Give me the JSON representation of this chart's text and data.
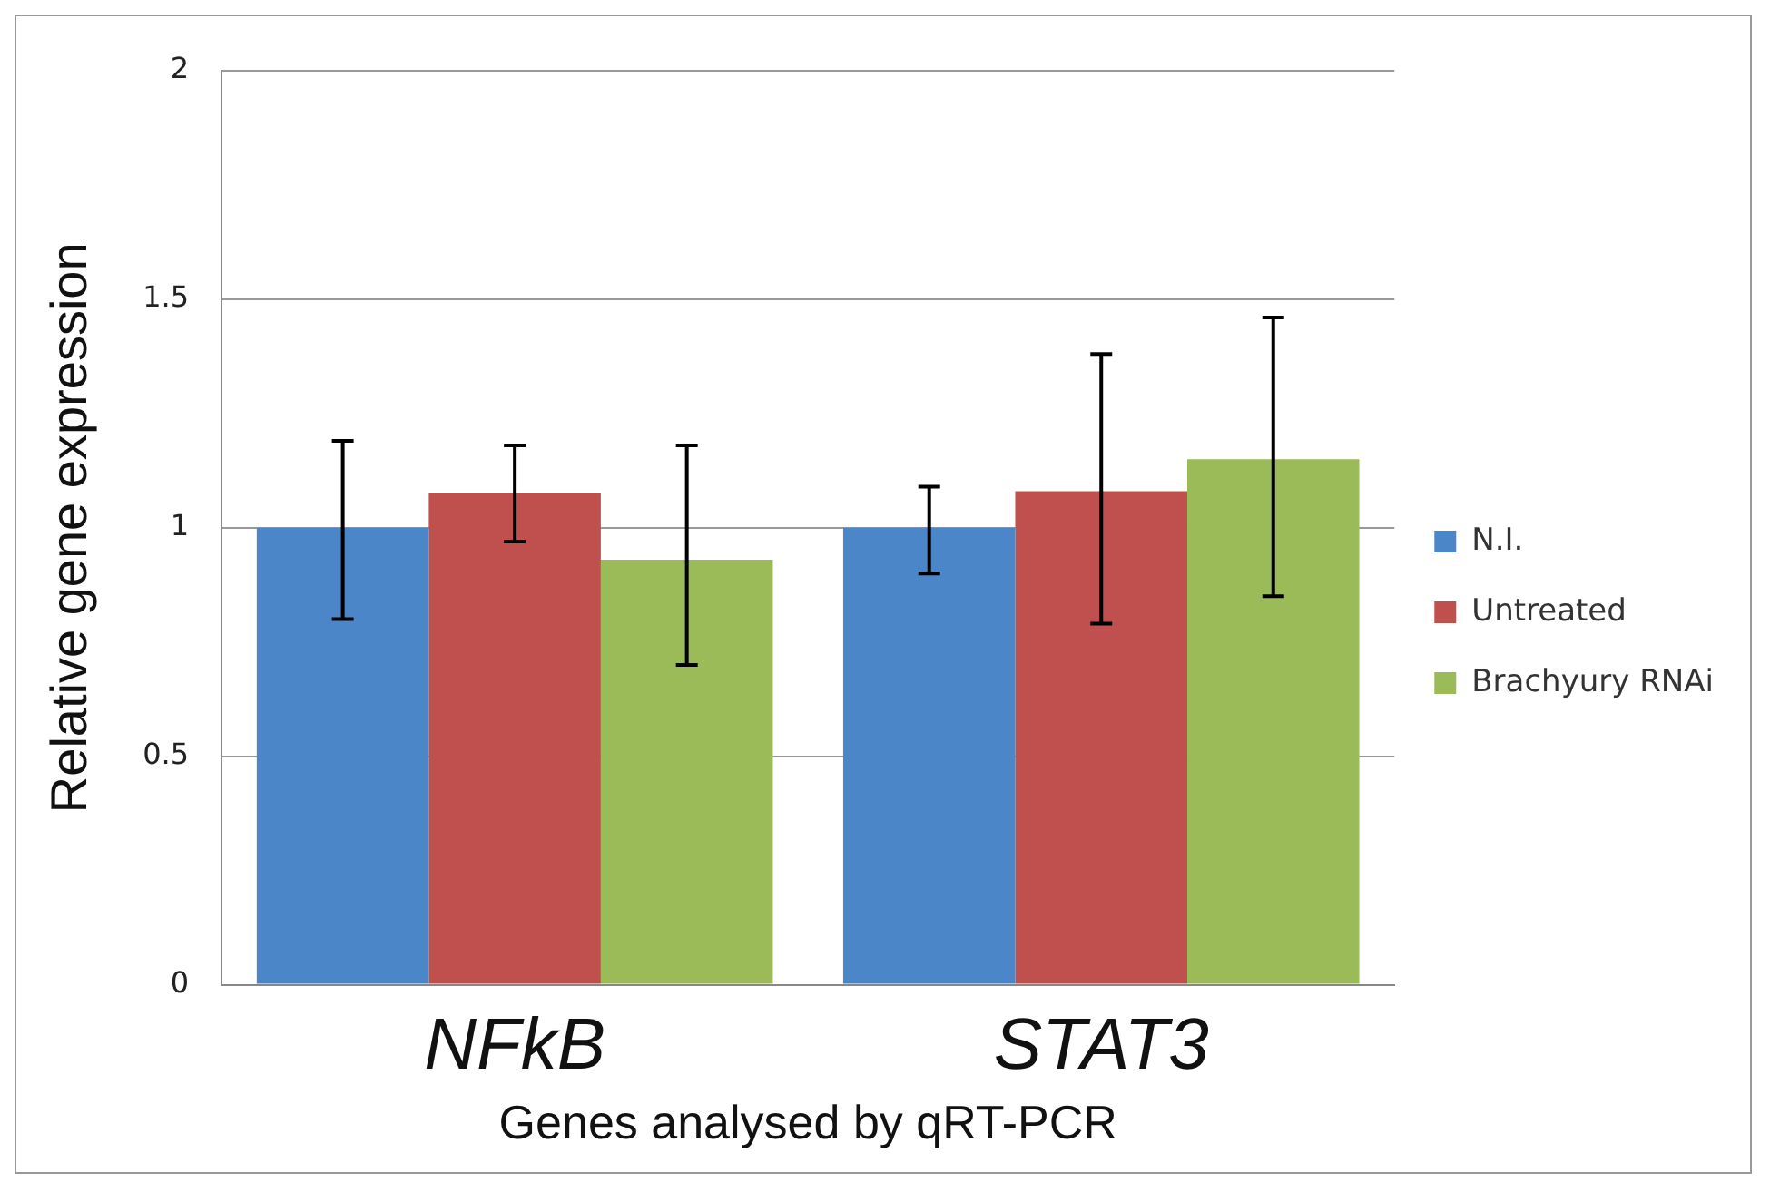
{
  "chart_data": {
    "type": "bar",
    "xlabel": "Genes analysed by qRT-PCR",
    "ylabel": "Relative gene expression",
    "categories": [
      "NFkB",
      "STAT3"
    ],
    "series": [
      {
        "name": "N.I.",
        "color": "#4a86c8",
        "values": [
          1.0,
          1.0
        ],
        "errors": [
          [
            0.8,
            1.19
          ],
          [
            0.9,
            1.09
          ]
        ]
      },
      {
        "name": "Untreated",
        "color": "#c0504d",
        "values": [
          1.075,
          1.08
        ],
        "errors": [
          [
            0.97,
            1.18
          ],
          [
            0.79,
            1.38
          ]
        ]
      },
      {
        "name": "Brachyury RNAi",
        "color": "#9bbb59",
        "values": [
          0.93,
          1.15
        ],
        "errors": [
          [
            0.7,
            1.18
          ],
          [
            0.85,
            1.46
          ]
        ]
      }
    ],
    "ylim": [
      0,
      2
    ],
    "yticks": [
      0,
      0.5,
      1,
      1.5,
      2
    ],
    "grid": "y",
    "legend": "right"
  }
}
